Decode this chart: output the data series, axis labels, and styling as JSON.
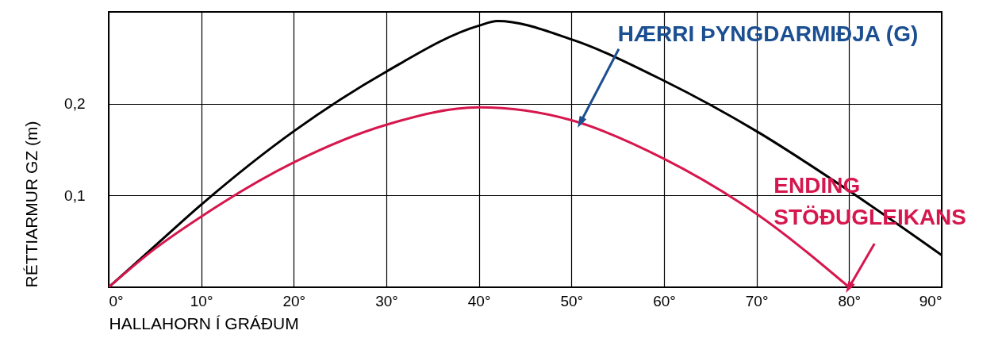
{
  "chart_data": {
    "type": "line",
    "xlabel": "HALLAHORN Í GRÁÐUM",
    "ylabel": "RÉTTIARMUR GZ (m)",
    "xlim": [
      0,
      90
    ],
    "ylim": [
      0,
      0.3
    ],
    "xticks": [
      {
        "value": 0,
        "label": "0°"
      },
      {
        "value": 10,
        "label": "10°"
      },
      {
        "value": 20,
        "label": "20°"
      },
      {
        "value": 30,
        "label": "30°"
      },
      {
        "value": 40,
        "label": "40°"
      },
      {
        "value": 50,
        "label": "50°"
      },
      {
        "value": 60,
        "label": "60°"
      },
      {
        "value": 70,
        "label": "70°"
      },
      {
        "value": 80,
        "label": "80°"
      },
      {
        "value": 90,
        "label": "90°"
      }
    ],
    "yticks": [
      {
        "value": 0.1,
        "label": "0,1"
      },
      {
        "value": 0.2,
        "label": "0,2"
      }
    ],
    "grid": true,
    "line_style": "solid",
    "series": [
      {
        "color": "#000000",
        "x": [
          0,
          5,
          10,
          20,
          30,
          40,
          42,
          50,
          60,
          70,
          80,
          90
        ],
        "values": [
          0,
          0.045,
          0.09,
          0.17,
          0.235,
          0.285,
          0.29,
          0.27,
          0.225,
          0.17,
          0.105,
          0.035
        ]
      },
      {
        "color": "#d6174d",
        "x": [
          0,
          5,
          10,
          20,
          30,
          40,
          50,
          60,
          70,
          80
        ],
        "values": [
          0,
          0.042,
          0.077,
          0.136,
          0.177,
          0.196,
          0.182,
          0.14,
          0.08,
          0
        ]
      }
    ],
    "annotations": [
      {
        "text": "HÆRRI ÞYNGDARMIÐJA (G)",
        "x": 51,
        "y": 0.18
      },
      {
        "text": "ENDING\nSTÖÐUGLEIKANS",
        "x": 80,
        "y": 0
      }
    ]
  }
}
